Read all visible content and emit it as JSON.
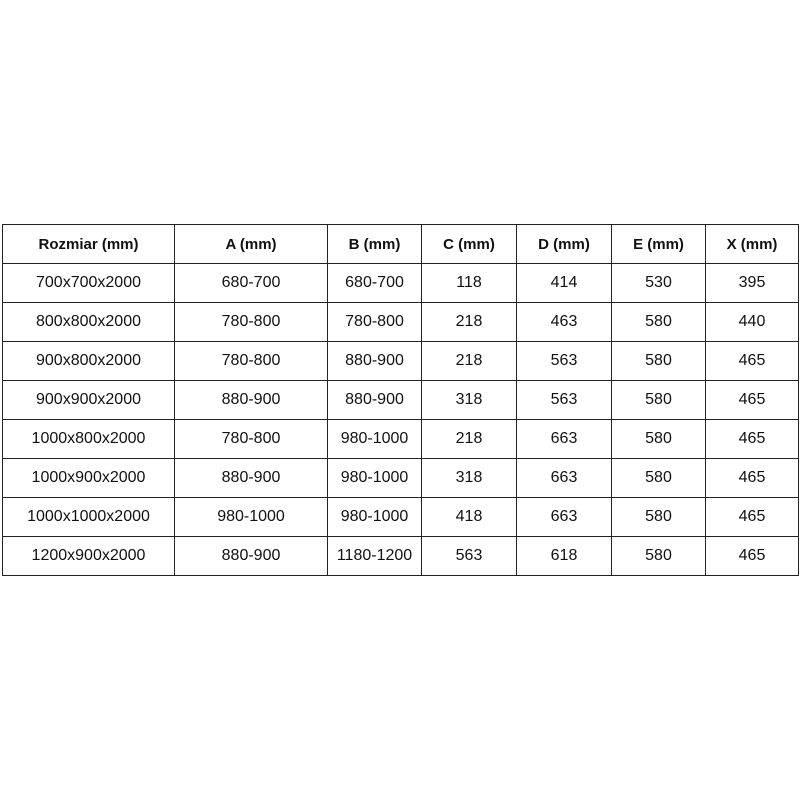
{
  "table": {
    "headers": [
      "Rozmiar (mm)",
      "A (mm)",
      "B (mm)",
      "C (mm)",
      "D (mm)",
      "E (mm)",
      "X (mm)"
    ],
    "rows": [
      [
        "700x700x2000",
        "680-700",
        "680-700",
        "118",
        "414",
        "530",
        "395"
      ],
      [
        "800x800x2000",
        "780-800",
        "780-800",
        "218",
        "463",
        "580",
        "440"
      ],
      [
        "900x800x2000",
        "780-800",
        "880-900",
        "218",
        "563",
        "580",
        "465"
      ],
      [
        "900x900x2000",
        "880-900",
        "880-900",
        "318",
        "563",
        "580",
        "465"
      ],
      [
        "1000x800x2000",
        "780-800",
        "980-1000",
        "218",
        "663",
        "580",
        "465"
      ],
      [
        "1000x900x2000",
        "880-900",
        "980-1000",
        "318",
        "663",
        "580",
        "465"
      ],
      [
        "1000x1000x2000",
        "980-1000",
        "980-1000",
        "418",
        "663",
        "580",
        "465"
      ],
      [
        "1200x900x2000",
        "880-900",
        "1180-1200",
        "563",
        "618",
        "580",
        "465"
      ]
    ]
  }
}
